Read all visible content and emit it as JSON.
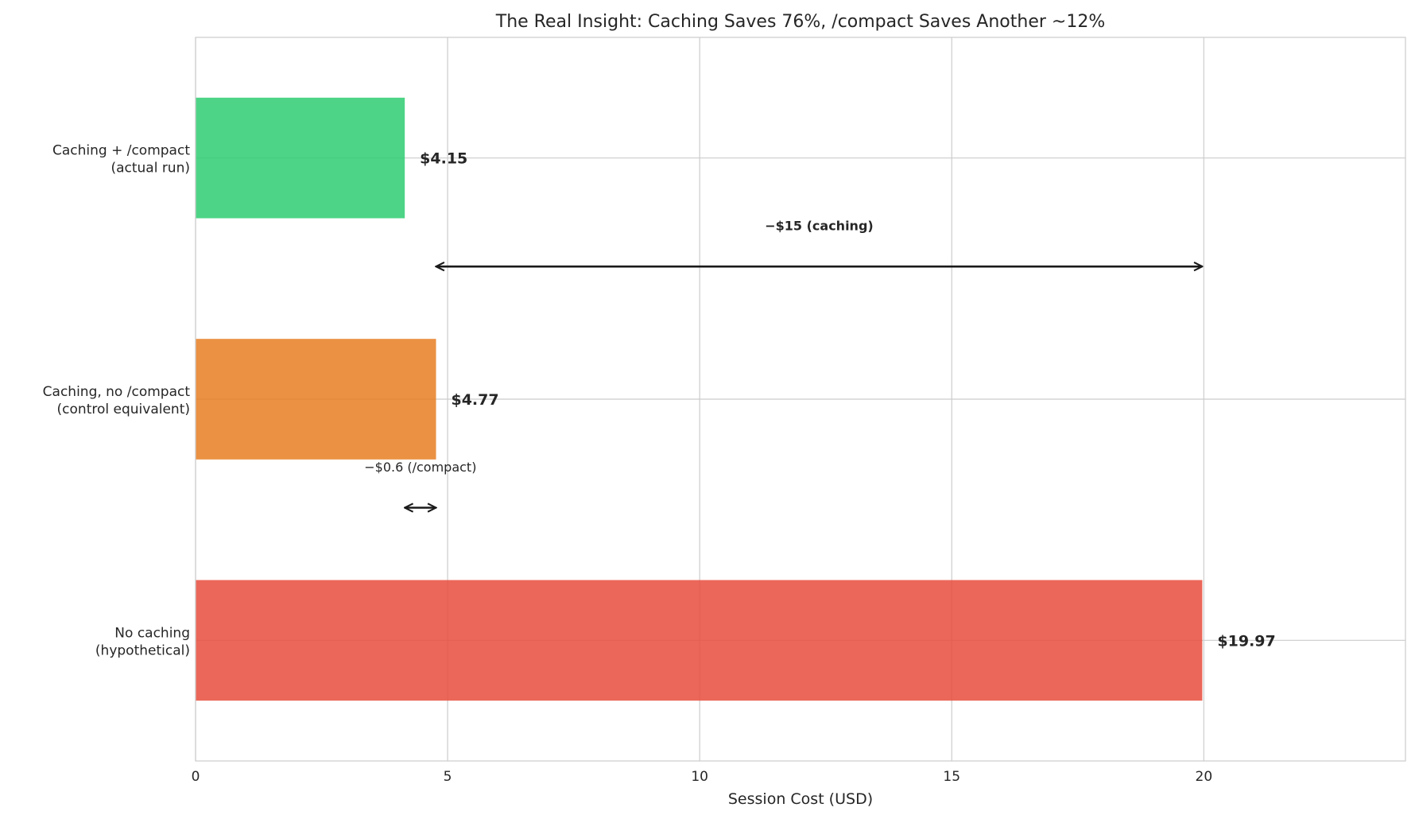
{
  "chart_data": {
    "type": "bar",
    "orientation": "horizontal",
    "title": "The Real Insight: Caching Saves 76%, /compact Saves Another ~12%",
    "xlabel": "Session Cost (USD)",
    "ylabel": "",
    "xlim": [
      0,
      24
    ],
    "xticks": [
      0,
      5,
      10,
      15,
      20
    ],
    "grid": true,
    "categories": [
      [
        "No caching",
        "(hypothetical)"
      ],
      [
        "Caching, no /compact",
        "(control equivalent)"
      ],
      [
        "Caching + /compact",
        "(actual run)"
      ]
    ],
    "values": [
      19.97,
      4.77,
      4.15
    ],
    "value_labels": [
      "$19.97",
      "$4.77",
      "$4.15"
    ],
    "colors": [
      "#e74c3c",
      "#e67e22",
      "#2ecc71"
    ],
    "annotations": [
      {
        "text": "−$15 (caching)",
        "from": 4.77,
        "to": 19.97,
        "between": [
          1,
          2
        ],
        "bold": true
      },
      {
        "text": "−$0.6 (/compact)",
        "from": 4.15,
        "to": 4.77,
        "between": [
          0,
          1
        ],
        "bold": false
      }
    ]
  }
}
